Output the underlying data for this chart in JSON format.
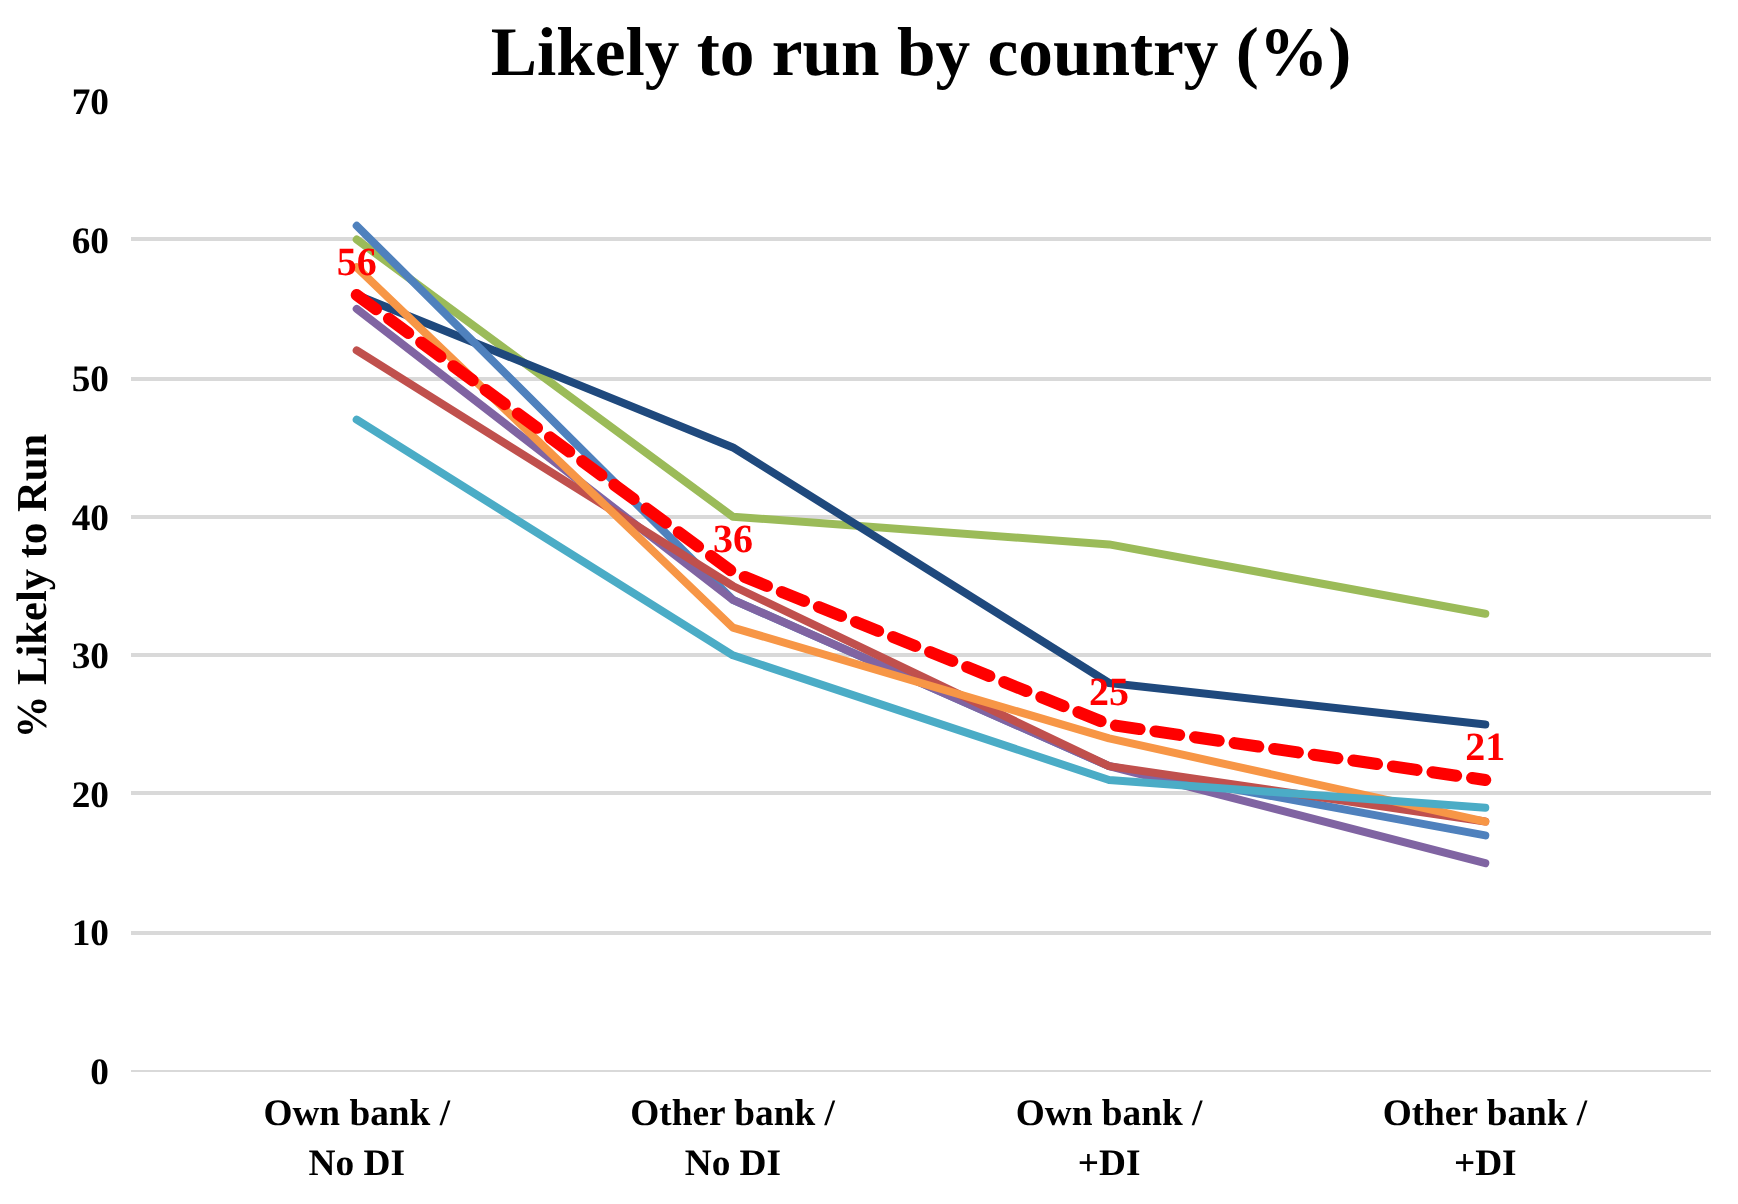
{
  "chart_data": {
    "type": "line",
    "title": "Likely to run by country (%)",
    "ylabel": "% Likely to Run",
    "categories": [
      "Own bank /\nNo DI",
      "Other bank /\nNo DI",
      "Own bank /\n+DI",
      "Other bank /\n+DI"
    ],
    "series": [
      {
        "color": "#9bbb59",
        "values": [
          60,
          40,
          38,
          33
        ]
      },
      {
        "color": "#1f497d",
        "values": [
          56,
          45,
          28,
          25
        ]
      },
      {
        "color": "#4f81bd",
        "values": [
          61,
          34,
          22,
          17
        ]
      },
      {
        "color": "#8064a2",
        "values": [
          55,
          34,
          22,
          15
        ]
      },
      {
        "color": "#c0504d",
        "values": [
          52,
          35,
          22,
          18
        ]
      },
      {
        "color": "#f79646",
        "values": [
          58,
          32,
          24,
          18
        ]
      },
      {
        "color": "#4bacc6",
        "values": [
          47,
          30,
          21,
          19
        ]
      },
      {
        "color": "#ff0000",
        "values": [
          56,
          36,
          25,
          21
        ],
        "line_style": "dashed",
        "value_labels": [
          "56",
          "36",
          "25",
          "21"
        ]
      }
    ],
    "ylim": [
      0,
      70
    ],
    "yticks": [
      0,
      10,
      20,
      30,
      40,
      50,
      60,
      70
    ],
    "grid": "y",
    "marker": "none"
  }
}
